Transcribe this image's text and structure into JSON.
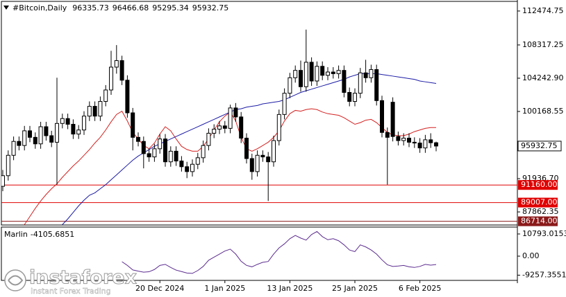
{
  "chart_data": [
    {
      "type": "candlestick",
      "title": "#Bitcoin,Daily",
      "categories": [
        null,
        null,
        null,
        null,
        null,
        null,
        null,
        null,
        null,
        null,
        null,
        null,
        null,
        null,
        null,
        null,
        null,
        null,
        null,
        null,
        null,
        null,
        null,
        null,
        null,
        null,
        null,
        null,
        null,
        "20 Dec 2024",
        null,
        null,
        null,
        null,
        null,
        null,
        null,
        null,
        null,
        null,
        null,
        "1 Jan 2025",
        null,
        null,
        null,
        null,
        null,
        null,
        null,
        null,
        null,
        null,
        null,
        "13 Jan 2025",
        null,
        null,
        null,
        null,
        null,
        null,
        null,
        null,
        null,
        null,
        null,
        "25 Jan 2025",
        null,
        null,
        null,
        null,
        null,
        null,
        null,
        null,
        null,
        null,
        null,
        "6 Feb 2025",
        null,
        null,
        null
      ],
      "open": [
        91000,
        92300,
        94800,
        96500,
        96000,
        97800,
        97000,
        96200,
        98300,
        97200,
        96400,
        98700,
        99300,
        98600,
        97400,
        97900,
        99600,
        100800,
        99600,
        101400,
        102800,
        105600,
        106400,
        104000,
        100000,
        97000,
        96500,
        95000,
        94600,
        95600,
        96800,
        94000,
        95300,
        94100,
        93400,
        92800,
        93700,
        94500,
        96000,
        97500,
        98000,
        98400,
        98100,
        100600,
        99500,
        96900,
        94400,
        92800,
        94800,
        94600,
        94000,
        96600,
        99800,
        102400,
        104300,
        105200,
        103200,
        106200,
        103900,
        105700,
        104600,
        105000,
        104800,
        105200,
        102500,
        101400,
        102400,
        104900,
        104300,
        105300,
        101500,
        97600,
        101300,
        97100,
        96600,
        96900,
        96400,
        96300,
        95700,
        96700,
        96335.73
      ],
      "high": [
        93000,
        95400,
        97100,
        97100,
        98400,
        98400,
        97600,
        98900,
        98900,
        97800,
        104300,
        99900,
        99900,
        99200,
        98500,
        100200,
        101400,
        101400,
        102000,
        103400,
        107600,
        108300,
        107000,
        104600,
        100600,
        97600,
        97100,
        95600,
        96200,
        97400,
        97400,
        95900,
        95900,
        94700,
        94000,
        94300,
        95100,
        96600,
        98100,
        98600,
        99000,
        99000,
        101000,
        101200,
        100100,
        97500,
        95000,
        95400,
        95400,
        95200,
        97200,
        100400,
        103000,
        104900,
        105800,
        106400,
        110200,
        106800,
        106300,
        106300,
        105600,
        105600,
        105800,
        105800,
        103100,
        103000,
        105500,
        106500,
        105900,
        105900,
        102100,
        98200,
        101900,
        97700,
        97500,
        97500,
        97000,
        96900,
        97300,
        97500,
        96466.68
      ],
      "low": [
        90400,
        91700,
        94200,
        95400,
        95400,
        96400,
        95600,
        95600,
        96600,
        95800,
        91200,
        98100,
        98000,
        96800,
        96800,
        97300,
        99000,
        99000,
        99000,
        100800,
        102200,
        104800,
        103400,
        99400,
        95400,
        95900,
        93200,
        94000,
        94000,
        95000,
        93400,
        93400,
        93500,
        92800,
        92000,
        92200,
        93100,
        93900,
        95400,
        96900,
        97400,
        97500,
        97500,
        98900,
        96300,
        93800,
        91800,
        92200,
        94000,
        89200,
        93400,
        96000,
        99200,
        101800,
        103700,
        102600,
        102600,
        103300,
        103300,
        104000,
        104000,
        104200,
        104200,
        101900,
        100800,
        100800,
        101800,
        103700,
        103700,
        100900,
        97000,
        91200,
        96500,
        96000,
        96000,
        95800,
        95700,
        95100,
        95100,
        95700,
        95295.34
      ],
      "close": [
        92300,
        94800,
        96500,
        96000,
        97800,
        97000,
        96200,
        98300,
        97200,
        96400,
        98700,
        99300,
        98600,
        97400,
        97900,
        99600,
        100800,
        99600,
        101400,
        102800,
        105600,
        106400,
        104000,
        100000,
        97000,
        96500,
        95000,
        94600,
        95600,
        96800,
        94000,
        95300,
        94100,
        93400,
        92800,
        93700,
        94500,
        96000,
        97500,
        98000,
        98400,
        98100,
        100600,
        99500,
        96900,
        94400,
        92800,
        94800,
        94600,
        94000,
        96600,
        99800,
        102400,
        104300,
        105200,
        103200,
        106200,
        103900,
        105700,
        104600,
        105000,
        104800,
        105200,
        102500,
        101400,
        102400,
        104900,
        104300,
        105300,
        101500,
        97600,
        97000,
        97100,
        96600,
        96900,
        96400,
        96300,
        95700,
        96700,
        96335.73,
        95932.75
      ],
      "series": [
        {
          "color": "#d42020",
          "values": [
            null,
            null,
            null,
            null,
            86300,
            87300,
            88300,
            89200,
            90000,
            90700,
            91300,
            92100,
            92800,
            93500,
            94100,
            94800,
            95500,
            96300,
            97000,
            97900,
            98900,
            99800,
            100200,
            99000,
            97600,
            96800,
            96000,
            95600,
            96300,
            97400,
            98300,
            97800,
            96800,
            95900,
            95500,
            95300,
            95300,
            95900,
            96800,
            97900,
            98900,
            99600,
            100100,
            99000,
            97000,
            95600,
            95300,
            95600,
            96000,
            96400,
            97000,
            97800,
            99000,
            99900,
            100300,
            100200,
            100400,
            100500,
            100400,
            100100,
            99900,
            99800,
            99700,
            99400,
            99000,
            98600,
            98800,
            99100,
            99200,
            98800,
            98200,
            97600,
            97300,
            97200,
            97200,
            97400,
            97700,
            97900,
            98100,
            98200,
            98200
          ]
        },
        {
          "color": "#1a1aa6",
          "values": [
            null,
            null,
            null,
            null,
            null,
            null,
            null,
            null,
            null,
            null,
            null,
            86300,
            87000,
            87800,
            88600,
            89300,
            89900,
            90200,
            90700,
            91200,
            91800,
            92400,
            93000,
            93600,
            94200,
            94700,
            95100,
            95500,
            95900,
            96200,
            96500,
            96800,
            97100,
            97400,
            97700,
            98000,
            98300,
            98600,
            98900,
            99200,
            99500,
            99800,
            100100,
            100400,
            100500,
            100700,
            100800,
            100900,
            101100,
            101200,
            101300,
            101400,
            101600,
            101900,
            102200,
            102500,
            102700,
            102900,
            103100,
            103300,
            103500,
            103700,
            103900,
            104100,
            104400,
            104600,
            104800,
            104800,
            104800,
            104800,
            104700,
            104600,
            104500,
            104400,
            104300,
            104200,
            104100,
            103900,
            103800,
            103700,
            103600
          ]
        }
      ],
      "levels": [
        {
          "value": 91160,
          "label": "91160.00",
          "color": "#e00000"
        },
        {
          "value": 89007,
          "label": "89007.00",
          "color": "#e00000"
        },
        {
          "value": 86714,
          "label": "86714.00",
          "color": "#8b1a1a"
        }
      ],
      "ylim": [
        86258,
        113655
      ],
      "yticks": [
        112474.75,
        108317.25,
        {
          "value": 104242.9,
          "label": "104242.90"
        },
        100168.55,
        {
          "value": 91936.7,
          "label": "91936.70"
        },
        87862.35
      ]
    },
    {
      "type": "line",
      "series": [
        {
          "name": "Marlin",
          "color": "#5b2c8f",
          "values": [
            null,
            null,
            null,
            null,
            null,
            null,
            null,
            null,
            null,
            null,
            null,
            null,
            null,
            null,
            null,
            null,
            null,
            null,
            null,
            null,
            null,
            null,
            -2700,
            -4500,
            -6700,
            -7300,
            -7800,
            -7600,
            -6500,
            -4500,
            -4000,
            -5500,
            -6800,
            -7500,
            -8200,
            -8400,
            -7000,
            -5000,
            -2000,
            -500,
            1000,
            2500,
            3400,
            1000,
            -2500,
            -4500,
            -5200,
            -4000,
            -3000,
            -2600,
            1000,
            4000,
            6000,
            8500,
            10100,
            8800,
            7800,
            10500,
            12000,
            9500,
            8000,
            8500,
            7500,
            5500,
            3000,
            2200,
            5500,
            4500,
            3000,
            1000,
            -1800,
            -4200,
            -5000,
            -4800,
            -4500,
            -5200,
            -5500,
            -5000,
            -4000,
            -4400,
            -4105.6851
          ]
        }
      ],
      "ylim": [
        -11800,
        14150
      ],
      "yticks": [
        10793.0153,
        {
          "value": 0,
          "label": "0.00"
        },
        -9257.3551
      ]
    }
  ],
  "watermark": {
    "name": "instaforex",
    "tagline": "Instant Forex Trading"
  }
}
